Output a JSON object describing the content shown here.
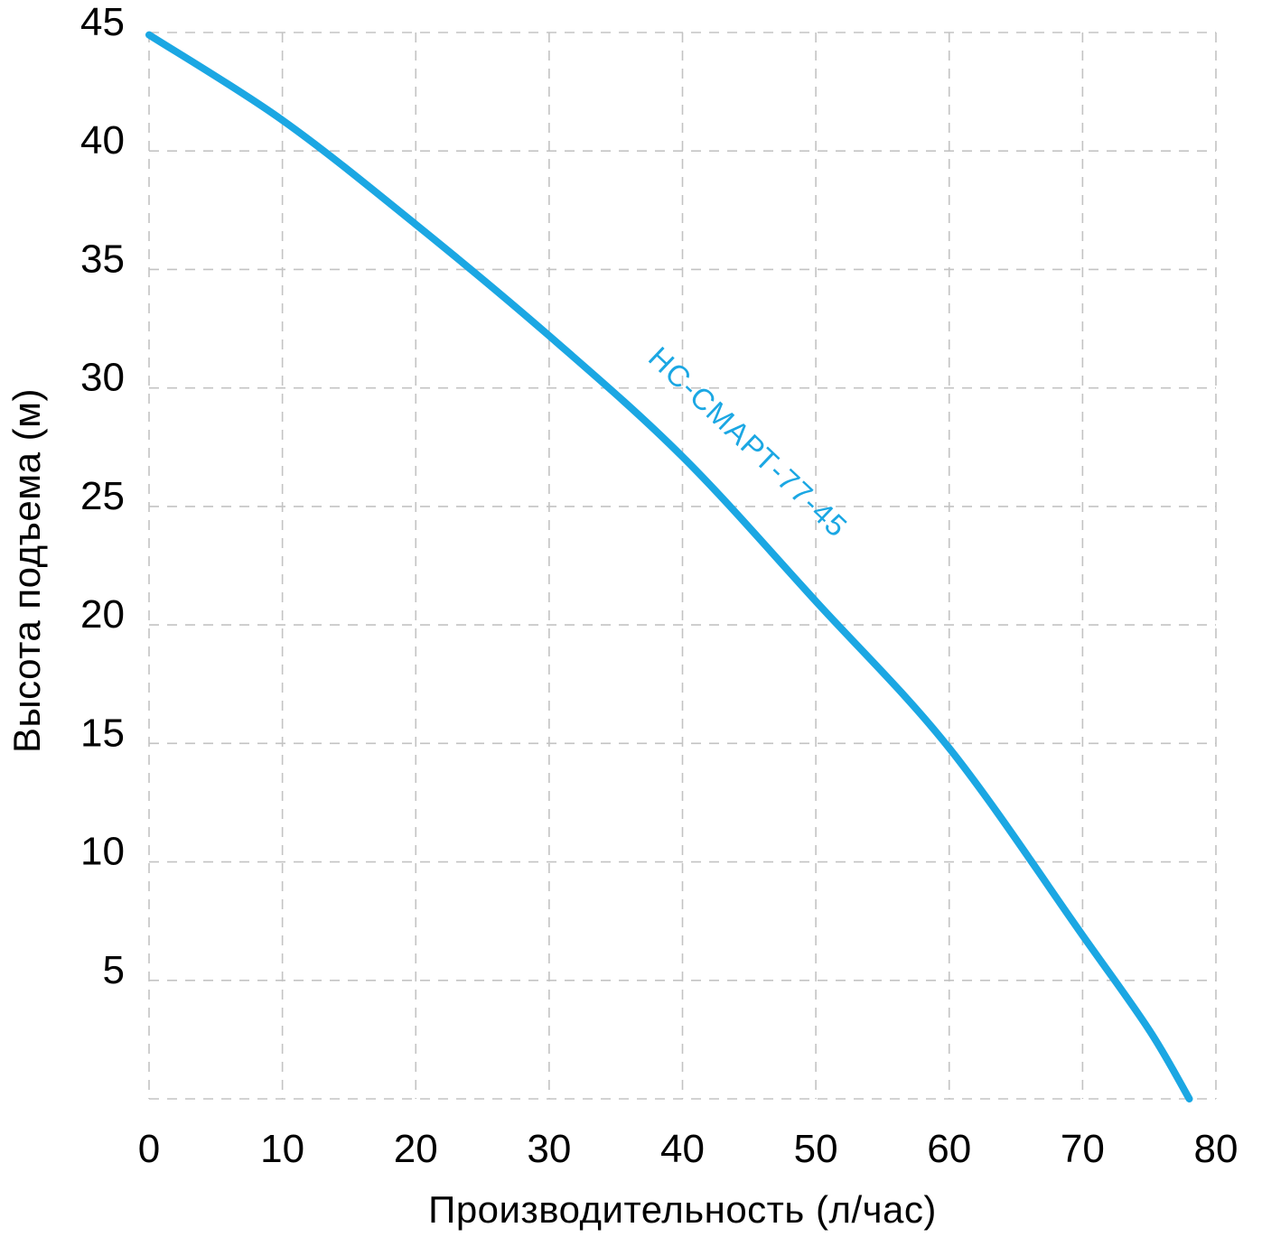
{
  "chart_data": {
    "type": "line",
    "title": "",
    "xlabel": "Производительность (л/час)",
    "ylabel": "Высота подъема (м)",
    "xlim": [
      0,
      80
    ],
    "ylim": [
      0,
      45
    ],
    "x_ticks": [
      0,
      10,
      20,
      30,
      40,
      50,
      60,
      70,
      80
    ],
    "y_ticks": [
      5,
      10,
      15,
      20,
      25,
      30,
      35,
      40,
      45
    ],
    "grid": {
      "on": true,
      "style": "dashed",
      "color": "#c3c3c3",
      "x_lines": [
        0,
        10,
        20,
        30,
        40,
        50,
        60,
        70,
        80
      ],
      "y_lines": [
        0,
        5,
        10,
        15,
        20,
        25,
        30,
        35,
        40,
        45
      ]
    },
    "legend": "none",
    "background": "#ffffff",
    "text_color": "#000000",
    "series": [
      {
        "name": "НС-СМАРТ-77-45",
        "color": "#1ba7e3",
        "line_width": 8,
        "points": [
          [
            0,
            44.9
          ],
          [
            10,
            41.3
          ],
          [
            20,
            36.9
          ],
          [
            30,
            32.2
          ],
          [
            40,
            27.1
          ],
          [
            50,
            21.0
          ],
          [
            60,
            14.8
          ],
          [
            70,
            6.9
          ],
          [
            75,
            2.9
          ],
          [
            78,
            0
          ]
        ],
        "label": {
          "text": "НС-СМАРТ-77-45",
          "at_x": 44.4,
          "at_y": 27.4,
          "angle_deg": 43.5
        }
      }
    ]
  }
}
